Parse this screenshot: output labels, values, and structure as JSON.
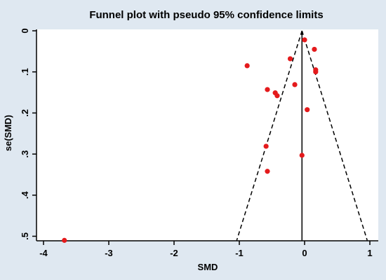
{
  "chart_data": {
    "type": "scatter",
    "title": "Funnel plot with pseudo 95% confidence limits",
    "xlabel": "SMD",
    "ylabel": "se(SMD)",
    "xlim": [
      -4.1,
      1.1
    ],
    "ylim": [
      0,
      0.52
    ],
    "y_reversed": true,
    "x_ticks": [
      -4,
      -3,
      -2,
      -1,
      0,
      1
    ],
    "x_tick_labels": [
      "-4",
      "-3",
      "-2",
      "-1",
      "0",
      "1"
    ],
    "y_ticks": [
      0,
      0.1,
      0.2,
      0.3,
      0.4,
      0.5
    ],
    "y_tick_labels": [
      "0",
      ".1",
      ".2",
      ".3",
      ".4",
      ".5"
    ],
    "grid": false,
    "pooled_effect": -0.04,
    "confidence_limit_se_max": 0.51,
    "point_color": "#e41a1c",
    "points": [
      {
        "x": 0.0,
        "y": 0.022
      },
      {
        "x": 0.15,
        "y": 0.045
      },
      {
        "x": -0.22,
        "y": 0.068
      },
      {
        "x": -0.88,
        "y": 0.085
      },
      {
        "x": 0.17,
        "y": 0.095
      },
      {
        "x": 0.17,
        "y": 0.1
      },
      {
        "x": -0.15,
        "y": 0.131
      },
      {
        "x": -0.57,
        "y": 0.143
      },
      {
        "x": -0.45,
        "y": 0.151
      },
      {
        "x": -0.42,
        "y": 0.158
      },
      {
        "x": 0.04,
        "y": 0.192
      },
      {
        "x": -0.59,
        "y": 0.281
      },
      {
        "x": -0.04,
        "y": 0.303
      },
      {
        "x": -0.57,
        "y": 0.342
      },
      {
        "x": -3.68,
        "y": 0.51
      }
    ]
  }
}
